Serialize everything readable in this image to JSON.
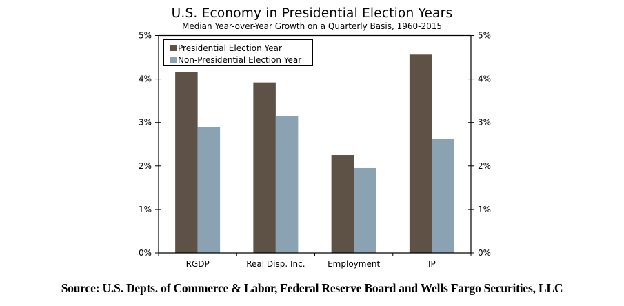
{
  "chart_data": {
    "type": "bar",
    "title": "U.S. Economy in Presidential Election Years",
    "subtitle": "Median Year-over-Year Growth on a Quarterly Basis, 1960-2015",
    "categories": [
      "RGDP",
      "Real Disp. Inc.",
      "Employment",
      "IP"
    ],
    "series": [
      {
        "name": "Presidential Election Year",
        "color": "#5e5247",
        "values": [
          4.16,
          3.92,
          2.25,
          4.56
        ]
      },
      {
        "name": "Non-Presidential Election Year",
        "color": "#8ba2b2",
        "values": [
          2.9,
          3.14,
          1.95,
          2.62
        ]
      }
    ],
    "xlabel": "",
    "ylabel": "",
    "ylim": [
      0,
      5
    ],
    "yticks": [
      0,
      1,
      2,
      3,
      4,
      5
    ],
    "ytick_labels": [
      "0%",
      "1%",
      "2%",
      "3%",
      "4%",
      "5%"
    ],
    "secondary_yaxis": true,
    "grid": false,
    "legend_position": "top-left"
  },
  "source": "Source:  U.S. Depts. of Commerce & Labor, Federal Reserve Board and Wells Fargo Securities, LLC"
}
